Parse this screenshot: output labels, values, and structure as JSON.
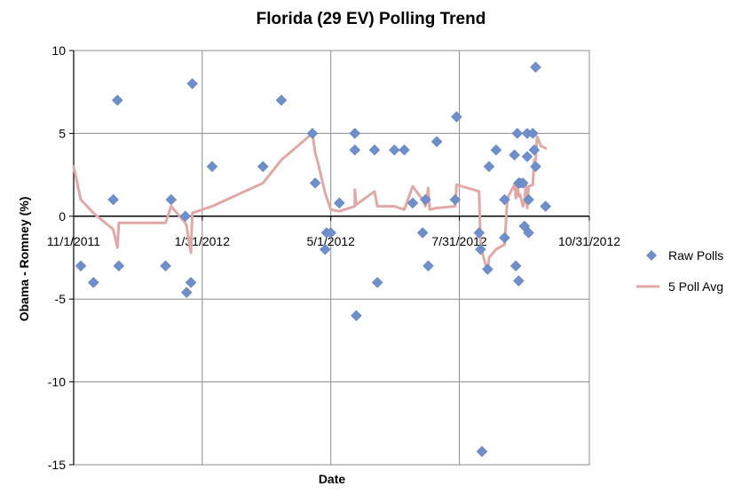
{
  "chart_data": {
    "type": "scatter",
    "title": "Florida (29 EV) Polling Trend",
    "xlabel": "Date",
    "ylabel": "Obama - Romney (%)",
    "xlim": [
      "2011-11-01",
      "2012-10-31"
    ],
    "ylim": [
      -15,
      10
    ],
    "y_ticks": [
      -15,
      -10,
      -5,
      0,
      5,
      10
    ],
    "x_ticks": [
      {
        "date": "2011-11-01",
        "label": "11/1/2011"
      },
      {
        "date": "2012-01-31",
        "label": "1/31/2012"
      },
      {
        "date": "2012-05-01",
        "label": "5/1/2012"
      },
      {
        "date": "2012-07-31",
        "label": "7/31/2012"
      },
      {
        "date": "2012-10-31",
        "label": "10/31/2012"
      }
    ],
    "grid": true,
    "legend_position": "right",
    "series": [
      {
        "name": "Raw Polls",
        "kind": "scatter",
        "marker": "diamond",
        "color": "#6f8fca",
        "points": [
          [
            "2011-11-06",
            -3
          ],
          [
            "2011-11-15",
            -4
          ],
          [
            "2011-11-29",
            1
          ],
          [
            "2011-12-02",
            7
          ],
          [
            "2011-12-03",
            -3
          ],
          [
            "2012-01-05",
            -3
          ],
          [
            "2012-01-09",
            1
          ],
          [
            "2012-01-19",
            0
          ],
          [
            "2012-01-20",
            -4.6
          ],
          [
            "2012-01-23",
            -4
          ],
          [
            "2012-01-24",
            8
          ],
          [
            "2012-02-07",
            3
          ],
          [
            "2012-03-14",
            3
          ],
          [
            "2012-03-27",
            7
          ],
          [
            "2012-04-18",
            5
          ],
          [
            "2012-04-20",
            2
          ],
          [
            "2012-04-27",
            -2
          ],
          [
            "2012-04-28",
            -1
          ],
          [
            "2012-05-01",
            -1
          ],
          [
            "2012-05-07",
            0.8
          ],
          [
            "2012-05-18",
            5
          ],
          [
            "2012-05-18",
            4
          ],
          [
            "2012-05-19",
            -6
          ],
          [
            "2012-06-01",
            4
          ],
          [
            "2012-06-03",
            -4
          ],
          [
            "2012-06-15",
            4
          ],
          [
            "2012-06-22",
            4
          ],
          [
            "2012-06-28",
            0.8
          ],
          [
            "2012-07-05",
            -1
          ],
          [
            "2012-07-07",
            1
          ],
          [
            "2012-07-09",
            -3
          ],
          [
            "2012-07-15",
            4.5
          ],
          [
            "2012-07-28",
            1
          ],
          [
            "2012-07-29",
            6
          ],
          [
            "2012-08-14",
            -1
          ],
          [
            "2012-08-15",
            -2
          ],
          [
            "2012-08-16",
            -14.2
          ],
          [
            "2012-08-20",
            -3.2
          ],
          [
            "2012-08-21",
            3
          ],
          [
            "2012-08-26",
            4
          ],
          [
            "2012-09-01",
            1
          ],
          [
            "2012-09-01",
            -1.3
          ],
          [
            "2012-09-08",
            3.7
          ],
          [
            "2012-09-09",
            -3
          ],
          [
            "2012-09-10",
            5
          ],
          [
            "2012-09-11",
            -3.9
          ],
          [
            "2012-09-11",
            2
          ],
          [
            "2012-09-12",
            2
          ],
          [
            "2012-09-14",
            2
          ],
          [
            "2012-09-15",
            -0.6
          ],
          [
            "2012-09-17",
            3.6
          ],
          [
            "2012-09-17",
            5
          ],
          [
            "2012-09-18",
            -1
          ],
          [
            "2012-09-18",
            1
          ],
          [
            "2012-09-21",
            5
          ],
          [
            "2012-09-22",
            4
          ],
          [
            "2012-09-23",
            3
          ],
          [
            "2012-09-23",
            9
          ],
          [
            "2012-09-30",
            0.6
          ]
        ]
      },
      {
        "name": "5 Poll Avg",
        "kind": "line",
        "color": "#e0a8a6",
        "points": [
          [
            "2011-11-01",
            3
          ],
          [
            "2011-11-06",
            1
          ],
          [
            "2011-11-15",
            0.2
          ],
          [
            "2011-11-29",
            -0.8
          ],
          [
            "2011-12-02",
            -1.9
          ],
          [
            "2011-12-03",
            -0.4
          ],
          [
            "2012-01-05",
            -0.4
          ],
          [
            "2012-01-09",
            0.6
          ],
          [
            "2012-01-19",
            -0.4
          ],
          [
            "2012-01-20",
            -0.6
          ],
          [
            "2012-01-23",
            -2.2
          ],
          [
            "2012-01-24",
            0.2
          ],
          [
            "2012-02-07",
            0.6
          ],
          [
            "2012-03-14",
            2
          ],
          [
            "2012-03-27",
            3.4
          ],
          [
            "2012-04-18",
            5
          ],
          [
            "2012-04-20",
            3.8
          ],
          [
            "2012-04-22",
            3.2
          ],
          [
            "2012-04-27",
            1.4
          ],
          [
            "2012-05-01",
            0.4
          ],
          [
            "2012-05-07",
            0.3
          ],
          [
            "2012-05-18",
            0.6
          ],
          [
            "2012-05-18",
            1.6
          ],
          [
            "2012-05-19",
            0.7
          ],
          [
            "2012-06-01",
            1.5
          ],
          [
            "2012-06-03",
            0.6
          ],
          [
            "2012-06-15",
            0.6
          ],
          [
            "2012-06-22",
            0.4
          ],
          [
            "2012-06-28",
            1.8
          ],
          [
            "2012-07-05",
            1
          ],
          [
            "2012-07-07",
            0.6
          ],
          [
            "2012-07-09",
            1.7
          ],
          [
            "2012-07-10",
            0.4
          ],
          [
            "2012-07-15",
            0.5
          ],
          [
            "2012-07-28",
            0.6
          ],
          [
            "2012-07-29",
            1.9
          ],
          [
            "2012-08-14",
            1.5
          ],
          [
            "2012-08-15",
            -1.6
          ],
          [
            "2012-08-16",
            -2.1
          ],
          [
            "2012-08-20",
            -3.4
          ],
          [
            "2012-08-21",
            -2.5
          ],
          [
            "2012-08-26",
            -2
          ],
          [
            "2012-09-01",
            -1.7
          ],
          [
            "2012-09-03",
            1.1
          ],
          [
            "2012-09-08",
            1.9
          ],
          [
            "2012-09-09",
            1.1
          ],
          [
            "2012-09-10",
            2
          ],
          [
            "2012-09-11",
            1.2
          ],
          [
            "2012-09-12",
            1.3
          ],
          [
            "2012-09-14",
            0.6
          ],
          [
            "2012-09-15",
            0.8
          ],
          [
            "2012-09-16",
            1.9
          ],
          [
            "2012-09-17",
            0.5
          ],
          [
            "2012-09-18",
            1.8
          ],
          [
            "2012-09-21",
            1.9
          ],
          [
            "2012-09-22",
            3.4
          ],
          [
            "2012-09-23",
            3.4
          ],
          [
            "2012-09-24",
            4.8
          ],
          [
            "2012-09-27",
            4.2
          ],
          [
            "2012-09-28",
            4.2
          ],
          [
            "2012-09-30",
            4.1
          ]
        ]
      }
    ]
  }
}
